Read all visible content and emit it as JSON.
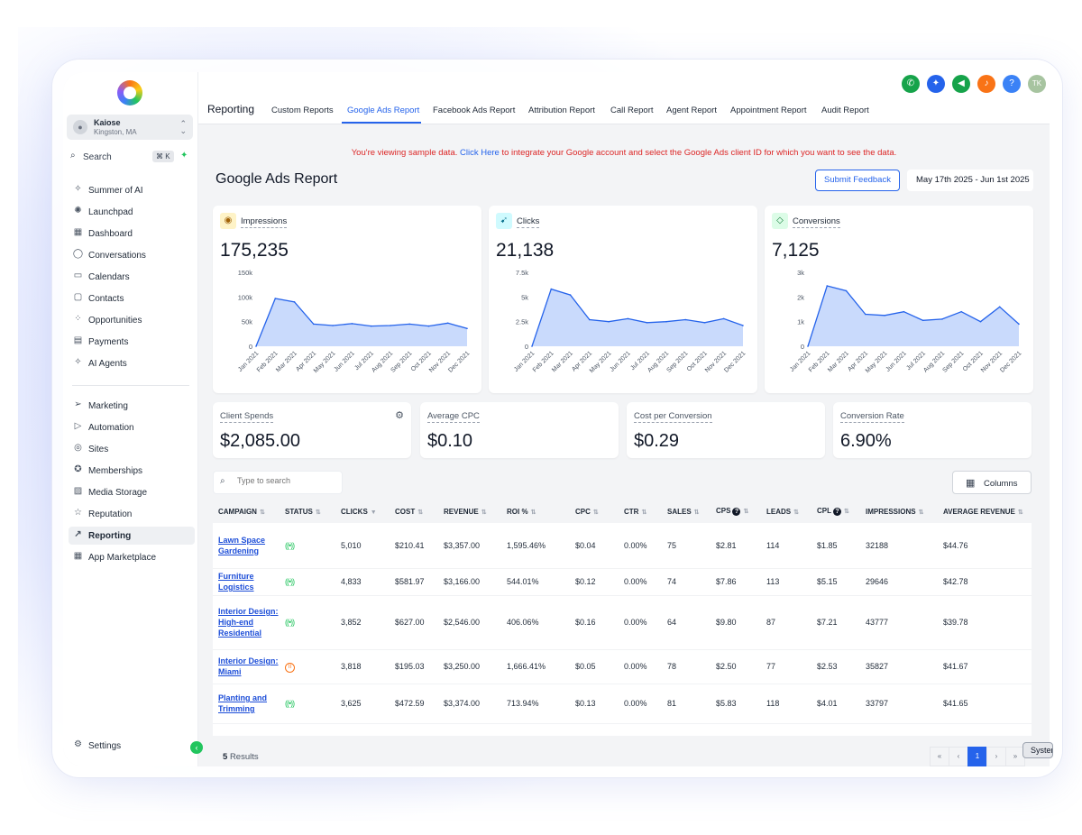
{
  "sidebar": {
    "account": {
      "name": "Kaiose",
      "location": "Kingston, MA"
    },
    "search": {
      "label": "Search",
      "shortcut": "⌘ K"
    },
    "items": [
      {
        "id": "summer-of-ai",
        "label": "Summer of AI",
        "icon": "sparkle-icon"
      },
      {
        "id": "launchpad",
        "label": "Launchpad",
        "icon": "rocket-icon"
      },
      {
        "id": "dashboard",
        "label": "Dashboard",
        "icon": "grid-icon"
      },
      {
        "id": "conversations",
        "label": "Conversations",
        "icon": "chat-icon"
      },
      {
        "id": "calendars",
        "label": "Calendars",
        "icon": "calendar-icon"
      },
      {
        "id": "contacts",
        "label": "Contacts",
        "icon": "contact-icon"
      },
      {
        "id": "opportunities",
        "label": "Opportunities",
        "icon": "funnel-icon"
      },
      {
        "id": "payments",
        "label": "Payments",
        "icon": "receipt-icon"
      },
      {
        "id": "ai-agents",
        "label": "AI Agents",
        "icon": "sparkle-icon"
      }
    ],
    "items2": [
      {
        "id": "marketing",
        "label": "Marketing",
        "icon": "send-icon"
      },
      {
        "id": "automation",
        "label": "Automation",
        "icon": "play-icon"
      },
      {
        "id": "sites",
        "label": "Sites",
        "icon": "globe-icon"
      },
      {
        "id": "memberships",
        "label": "Memberships",
        "icon": "award-icon"
      },
      {
        "id": "media-storage",
        "label": "Media Storage",
        "icon": "image-icon"
      },
      {
        "id": "reputation",
        "label": "Reputation",
        "icon": "star-icon"
      },
      {
        "id": "reporting",
        "label": "Reporting",
        "icon": "trend-icon",
        "active": true
      },
      {
        "id": "app-marketplace",
        "label": "App Marketplace",
        "icon": "apps-icon"
      }
    ],
    "settings": "Settings"
  },
  "header": {
    "section_title": "Reporting",
    "tabs": [
      {
        "label": "Custom Reports"
      },
      {
        "label": "Google Ads Report",
        "active": true
      },
      {
        "label": "Facebook Ads Report"
      },
      {
        "label": "Attribution Report"
      },
      {
        "label": "Call Report"
      },
      {
        "label": "Agent Report"
      },
      {
        "label": "Appointment Report"
      },
      {
        "label": "Audit Report"
      }
    ],
    "icons": [
      {
        "name": "phone-icon",
        "color": "#16a34a"
      },
      {
        "name": "magic-icon",
        "color": "#2563eb"
      },
      {
        "name": "megaphone-icon",
        "color": "#16a34a"
      },
      {
        "name": "bell-icon",
        "color": "#f97316"
      },
      {
        "name": "help-icon",
        "color": "#3b82f6"
      }
    ],
    "user_initials": "TK"
  },
  "notice": {
    "prefix": "You're viewing sample data.",
    "link": "Click Here",
    "suffix": "to integrate your Google account and select the Google Ads client ID for which you want to see the data."
  },
  "page": {
    "title": "Google Ads Report",
    "feedback_label": "Submit Feedback",
    "date_range": "May 17th 2025 - Jun 1st 2025"
  },
  "chart_data": [
    {
      "type": "area",
      "title": "Impressions",
      "total": "175,235",
      "categories": [
        "Jan 2021",
        "Feb 2021",
        "Mar 2021",
        "Apr 2021",
        "May 2021",
        "Jun 2021",
        "Jul 2021",
        "Aug 2021",
        "Sep 2021",
        "Oct 2021",
        "Nov 2021",
        "Dec 2021"
      ],
      "values": [
        0,
        97000,
        90000,
        45000,
        42000,
        46000,
        41000,
        42000,
        45000,
        41000,
        47000,
        36000
      ],
      "yticks": [
        "0",
        "50k",
        "100k",
        "150k"
      ],
      "ylim": [
        0,
        150000
      ],
      "color": "#2563eb"
    },
    {
      "type": "area",
      "title": "Clicks",
      "total": "21,138",
      "categories": [
        "Jan 2021",
        "Feb 2021",
        "Mar 2021",
        "Apr 2021",
        "May 2021",
        "Jun 2021",
        "Jul 2021",
        "Aug 2021",
        "Sep 2021",
        "Oct 2021",
        "Nov 2021",
        "Dec 2021"
      ],
      "values": [
        0,
        5800,
        5200,
        2700,
        2500,
        2800,
        2400,
        2500,
        2700,
        2400,
        2800,
        2100
      ],
      "yticks": [
        "0",
        "2.5k",
        "5k",
        "7.5k"
      ],
      "ylim": [
        0,
        7500
      ],
      "color": "#2563eb"
    },
    {
      "type": "area",
      "title": "Conversions",
      "total": "7,125",
      "categories": [
        "Jan 2021",
        "Feb 2021",
        "Mar 2021",
        "Apr 2021",
        "May 2021",
        "Jun 2021",
        "Jul 2021",
        "Aug 2021",
        "Sep 2021",
        "Oct 2021",
        "Nov 2021",
        "Dec 2021"
      ],
      "values": [
        0,
        2450,
        2250,
        1300,
        1250,
        1400,
        1050,
        1100,
        1400,
        1000,
        1600,
        900
      ],
      "yticks": [
        "0",
        "1k",
        "2k",
        "3k"
      ],
      "ylim": [
        0,
        3000
      ],
      "color": "#2563eb"
    }
  ],
  "kpis": [
    {
      "label": "Client Spends",
      "value": "$2,085.00"
    },
    {
      "label": "Average CPC",
      "value": "$0.10"
    },
    {
      "label": "Cost per Conversion",
      "value": "$0.29"
    },
    {
      "label": "Conversion Rate",
      "value": "6.90%"
    }
  ],
  "table": {
    "search_placeholder": "Type to search",
    "columns_label": "Columns",
    "headers": [
      "CAMPAIGN",
      "STATUS",
      "CLICKS",
      "COST",
      "REVENUE",
      "ROI %",
      "CPC",
      "CTR",
      "SALES",
      "CPS",
      "LEADS",
      "CPL",
      "IMPRESSIONS",
      "AVERAGE REVENUE"
    ],
    "rows": [
      {
        "campaign": "Lawn Space Gardening",
        "status": "active",
        "clicks": "5,010",
        "cost": "$210.41",
        "revenue": "$3,357.00",
        "roi": "1,595.46%",
        "cpc": "$0.04",
        "ctr": "0.00%",
        "sales": "75",
        "cps": "$2.81",
        "leads": "114",
        "cpl": "$1.85",
        "impressions": "32188",
        "avg_revenue": "$44.76"
      },
      {
        "campaign": "Furniture Logistics",
        "status": "active",
        "clicks": "4,833",
        "cost": "$581.97",
        "revenue": "$3,166.00",
        "roi": "544.01%",
        "cpc": "$0.12",
        "ctr": "0.00%",
        "sales": "74",
        "cps": "$7.86",
        "leads": "113",
        "cpl": "$5.15",
        "impressions": "29646",
        "avg_revenue": "$42.78"
      },
      {
        "campaign": "Interior Design: High-end Residential",
        "status": "active",
        "clicks": "3,852",
        "cost": "$627.00",
        "revenue": "$2,546.00",
        "roi": "406.06%",
        "cpc": "$0.16",
        "ctr": "0.00%",
        "sales": "64",
        "cps": "$9.80",
        "leads": "87",
        "cpl": "$7.21",
        "impressions": "43777",
        "avg_revenue": "$39.78"
      },
      {
        "campaign": "Interior Design: Miami",
        "status": "paused",
        "clicks": "3,818",
        "cost": "$195.03",
        "revenue": "$3,250.00",
        "roi": "1,666.41%",
        "cpc": "$0.05",
        "ctr": "0.00%",
        "sales": "78",
        "cps": "$2.50",
        "leads": "77",
        "cpl": "$2.53",
        "impressions": "35827",
        "avg_revenue": "$41.67"
      },
      {
        "campaign": "Planting and Trimming",
        "status": "active",
        "clicks": "3,625",
        "cost": "$472.59",
        "revenue": "$3,374.00",
        "roi": "713.94%",
        "cpc": "$0.13",
        "ctr": "0.00%",
        "sales": "81",
        "cps": "$5.83",
        "leads": "118",
        "cpl": "$4.01",
        "impressions": "33797",
        "avg_revenue": "$41.65"
      }
    ],
    "results_count": "5",
    "results_label": "Results",
    "current_page": "1"
  },
  "floating_button": "System"
}
